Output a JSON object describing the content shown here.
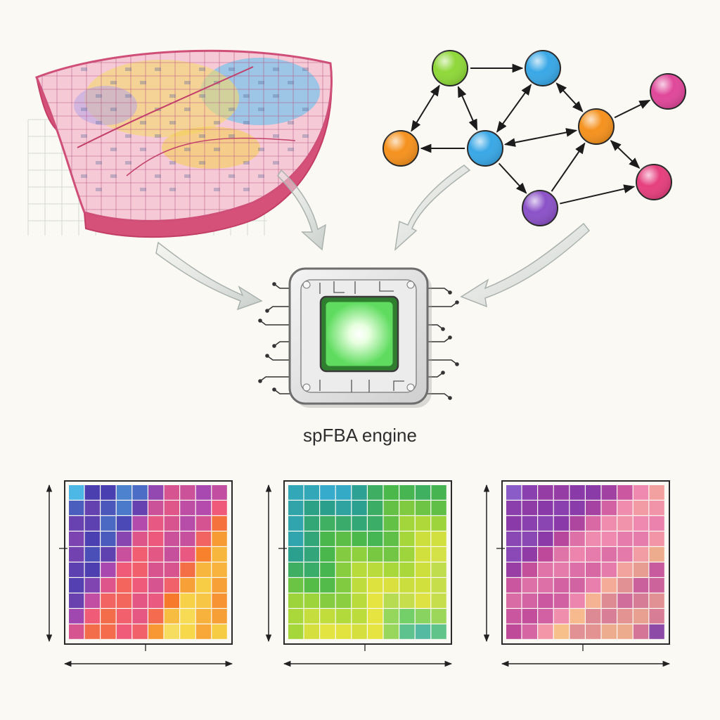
{
  "engine": {
    "label": "spFBA engine",
    "core_color": "#5fdc5f"
  },
  "network": {
    "nodes": [
      {
        "id": "n1",
        "color": "#8fd83a"
      },
      {
        "id": "n2",
        "color": "#3aa8e6"
      },
      {
        "id": "n3",
        "color": "#f5921f"
      },
      {
        "id": "n4",
        "color": "#3aa8e6"
      },
      {
        "id": "n5",
        "color": "#f5921f"
      },
      {
        "id": "n6",
        "color": "#e0489a"
      },
      {
        "id": "n7",
        "color": "#e6407e"
      },
      {
        "id": "n8",
        "color": "#8c52c8"
      }
    ],
    "edges": [
      {
        "from": "n1",
        "to": "n2",
        "dir": "forward"
      },
      {
        "from": "n1",
        "to": "n3",
        "dir": "both"
      },
      {
        "from": "n1",
        "to": "n4",
        "dir": "both"
      },
      {
        "from": "n4",
        "to": "n3",
        "dir": "forward"
      },
      {
        "from": "n4",
        "to": "n2",
        "dir": "both"
      },
      {
        "from": "n2",
        "to": "n5",
        "dir": "both"
      },
      {
        "from": "n4",
        "to": "n5",
        "dir": "both"
      },
      {
        "from": "n5",
        "to": "n6",
        "dir": "forward"
      },
      {
        "from": "n5",
        "to": "n7",
        "dir": "both"
      },
      {
        "from": "n4",
        "to": "n8",
        "dir": "forward"
      },
      {
        "from": "n8",
        "to": "n5",
        "dir": "forward"
      },
      {
        "from": "n8",
        "to": "n7",
        "dir": "forward"
      }
    ]
  },
  "maps": [
    {
      "id": "map-1",
      "palette": [
        "#4db7e6",
        "#4a3fb0",
        "#b04ab0",
        "#f05a7a",
        "#f77a2a",
        "#f7d94a",
        "#f2ecc0"
      ]
    },
    {
      "id": "map-2",
      "palette": [
        "#3aaee0",
        "#2a9f8a",
        "#4ab84a",
        "#a8d83a",
        "#e8e440",
        "#6fcf6a",
        "#3aa6d8"
      ]
    },
    {
      "id": "map-3",
      "palette": [
        "#8a5cc8",
        "#8a3aa8",
        "#c04a9a",
        "#f08ab0",
        "#f7c08a",
        "#c04aa0",
        "#4a4ab0"
      ]
    }
  ]
}
